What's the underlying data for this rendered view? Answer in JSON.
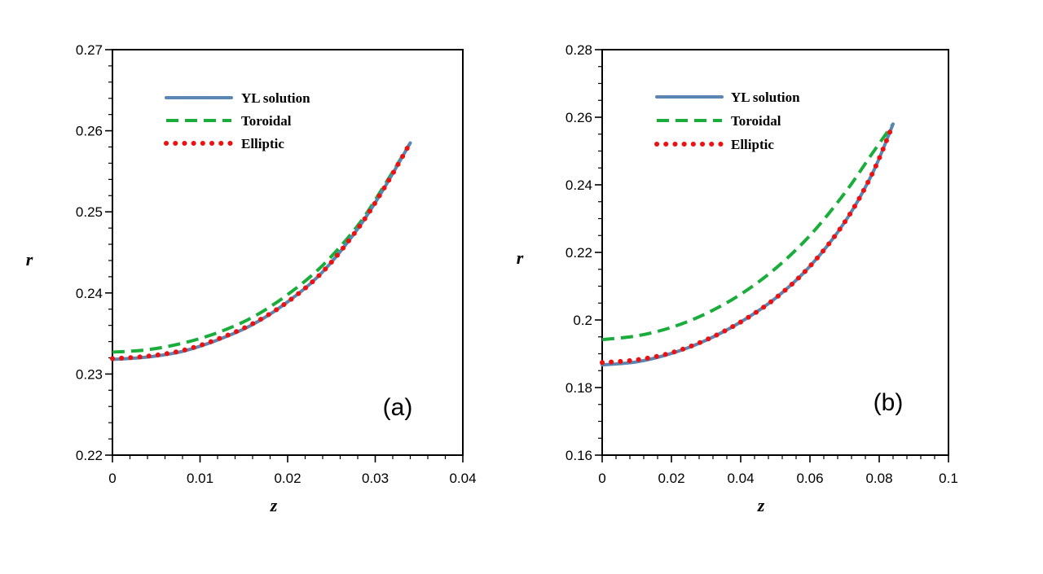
{
  "colors": {
    "yl": "#5b86b4",
    "toroidal": "#1aad3c",
    "elliptic": "#ee1111",
    "axis": "#000000"
  },
  "chart_data": [
    {
      "type": "line",
      "panel_label": "(a)",
      "xlabel": "z",
      "ylabel": "r",
      "xlim": [
        0,
        0.04
      ],
      "ylim": [
        0.22,
        0.27
      ],
      "xticks": [
        "0",
        "0.01",
        "0.02",
        "0.03",
        "0.04"
      ],
      "yticks": [
        "0.22",
        "0.23",
        "0.24",
        "0.25",
        "0.26",
        "0.27"
      ],
      "legend_position": "top-left",
      "series": [
        {
          "name": "YL solution",
          "style": "solid",
          "x": [
            0,
            0.004,
            0.008,
            0.012,
            0.016,
            0.02,
            0.024,
            0.028,
            0.031,
            0.034
          ],
          "y": [
            0.2318,
            0.2321,
            0.2328,
            0.2342,
            0.2361,
            0.2389,
            0.2426,
            0.2479,
            0.2529,
            0.2585
          ]
        },
        {
          "name": "Toroidal",
          "style": "dashed",
          "x": [
            0,
            0.004,
            0.008,
            0.012,
            0.016,
            0.02,
            0.024,
            0.028,
            0.031,
            0.034
          ],
          "y": [
            0.2327,
            0.233,
            0.2338,
            0.2351,
            0.237,
            0.2398,
            0.2434,
            0.2483,
            0.2532,
            0.2585
          ]
        },
        {
          "name": "Elliptic",
          "style": "dotted",
          "x": [
            0,
            0.004,
            0.008,
            0.012,
            0.016,
            0.02,
            0.024,
            0.028,
            0.031,
            0.034
          ],
          "y": [
            0.2319,
            0.2322,
            0.2329,
            0.2343,
            0.2362,
            0.2389,
            0.2426,
            0.2479,
            0.2529,
            0.2585
          ]
        }
      ]
    },
    {
      "type": "line",
      "panel_label": "(b)",
      "xlabel": "z",
      "ylabel": "r",
      "xlim": [
        0,
        0.1
      ],
      "ylim": [
        0.16,
        0.28
      ],
      "xticks": [
        "0",
        "0.02",
        "0.04",
        "0.06",
        "0.08",
        "0.1"
      ],
      "yticks": [
        "0.16",
        "0.18",
        "0.2",
        "0.22",
        "0.24",
        "0.26",
        "0.28"
      ],
      "legend_position": "top-left",
      "series": [
        {
          "name": "YL solution",
          "style": "solid",
          "x": [
            0,
            0.01,
            0.02,
            0.03,
            0.04,
            0.05,
            0.06,
            0.07,
            0.078,
            0.084
          ],
          "y": [
            0.1867,
            0.1876,
            0.1901,
            0.194,
            0.1994,
            0.2064,
            0.2159,
            0.2289,
            0.2433,
            0.258
          ]
        },
        {
          "name": "Toroidal",
          "style": "dashed",
          "x": [
            0,
            0.01,
            0.02,
            0.03,
            0.04,
            0.05,
            0.06,
            0.07,
            0.078,
            0.084
          ],
          "y": [
            0.1942,
            0.1953,
            0.1978,
            0.2019,
            0.2076,
            0.2152,
            0.225,
            0.2375,
            0.2493,
            0.258
          ]
        },
        {
          "name": "Elliptic",
          "style": "dotted",
          "x": [
            0,
            0.01,
            0.02,
            0.03,
            0.04,
            0.05,
            0.06,
            0.07,
            0.078,
            0.084
          ],
          "y": [
            0.1874,
            0.1882,
            0.1903,
            0.1941,
            0.1994,
            0.2064,
            0.2159,
            0.2289,
            0.2433,
            0.258
          ]
        }
      ]
    }
  ]
}
